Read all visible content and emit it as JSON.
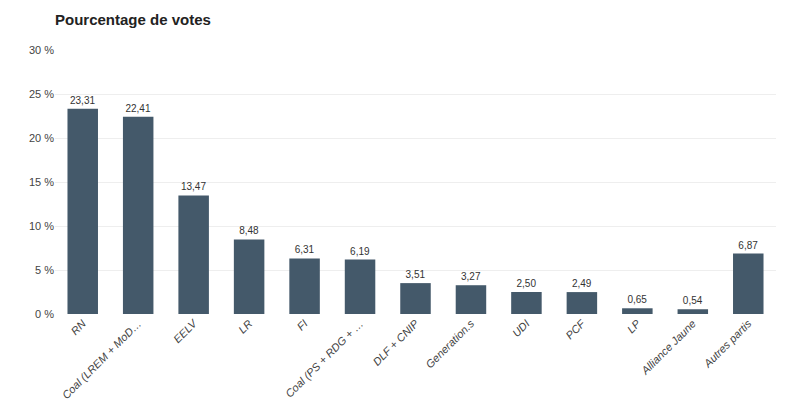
{
  "chart_data": {
    "type": "bar",
    "title": "Pourcentage de votes",
    "categories": [
      "RN",
      "Coal (LREM + MoD…",
      "EELV",
      "LR",
      "FI",
      "Coal (PS + RDG + …",
      "DLF + CNIP",
      "Generation.s",
      "UDI",
      "PCF",
      "LP",
      "Alliance Jaune",
      "Autres partis"
    ],
    "values": [
      23.31,
      22.41,
      13.47,
      8.48,
      6.31,
      6.19,
      3.51,
      3.27,
      2.5,
      2.49,
      0.65,
      0.54,
      6.87
    ],
    "value_labels": [
      "23,31",
      "22,41",
      "13,47",
      "8,48",
      "6,31",
      "6,19",
      "3,51",
      "3,27",
      "2,50",
      "2,49",
      "0,65",
      "0,54",
      "6,87"
    ],
    "data_labels": true,
    "color": "#44596a",
    "ylim": [
      0,
      30
    ],
    "yticks": [
      {
        "value": 0,
        "label": "0 %"
      },
      {
        "value": 5,
        "label": "5 %"
      },
      {
        "value": 10,
        "label": "10 %"
      },
      {
        "value": 15,
        "label": "15 %"
      },
      {
        "value": 20,
        "label": "20 %"
      },
      {
        "value": 25,
        "label": "25 %"
      },
      {
        "value": 30,
        "label": "30 %"
      }
    ],
    "grid": true
  }
}
